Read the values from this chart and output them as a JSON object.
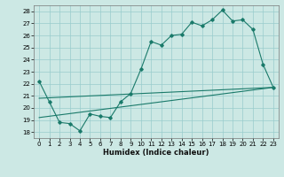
{
  "xlabel": "Humidex (Indice chaleur)",
  "background_color": "#cce8e4",
  "grid_color": "#99cccc",
  "line_color": "#1a7a6a",
  "xlim": [
    -0.5,
    23.5
  ],
  "ylim": [
    17.5,
    28.5
  ],
  "xticks": [
    0,
    1,
    2,
    3,
    4,
    5,
    6,
    7,
    8,
    9,
    10,
    11,
    12,
    13,
    14,
    15,
    16,
    17,
    18,
    19,
    20,
    21,
    22,
    23
  ],
  "yticks": [
    18,
    19,
    20,
    21,
    22,
    23,
    24,
    25,
    26,
    27,
    28
  ],
  "series1_x": [
    0,
    1,
    2,
    3,
    4,
    5,
    6,
    7,
    8,
    9,
    10,
    11,
    12,
    13,
    14,
    15,
    16,
    17,
    18,
    19,
    20,
    21,
    22,
    23
  ],
  "series1_y": [
    22.2,
    20.5,
    18.8,
    18.7,
    18.1,
    19.5,
    19.3,
    19.2,
    20.5,
    21.2,
    23.2,
    25.5,
    25.2,
    26.0,
    26.1,
    27.1,
    26.8,
    27.3,
    28.1,
    27.2,
    27.3,
    26.5,
    23.6,
    21.7
  ],
  "trend1_x": [
    0,
    23
  ],
  "trend1_y": [
    20.8,
    21.7
  ],
  "trend2_x": [
    0,
    23
  ],
  "trend2_y": [
    19.2,
    21.7
  ],
  "tick_fontsize": 5.0,
  "xlabel_fontsize": 6.0
}
